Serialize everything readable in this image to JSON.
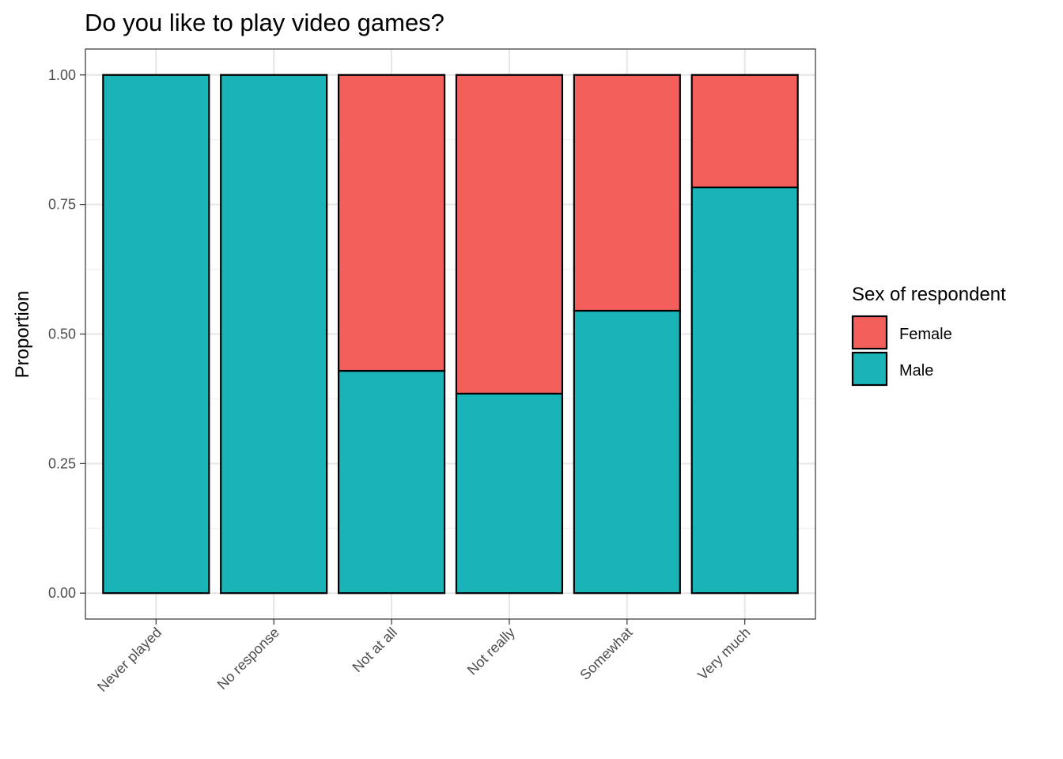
{
  "chart_data": {
    "type": "bar",
    "stacked": true,
    "position": "fill",
    "title": "Do you like to play video games?",
    "xlabel": "",
    "ylabel": "Proportion",
    "ylim": [
      -0.05,
      1.05
    ],
    "yticks": [
      0,
      0.25,
      0.5,
      0.75,
      1.0
    ],
    "ytick_labels": [
      "0.00",
      "0.25",
      "0.50",
      "0.75",
      "1.00"
    ],
    "categories": [
      "Never played",
      "No response",
      "Not at all",
      "Not really",
      "Somewhat",
      "Very much"
    ],
    "series": [
      {
        "name": "Male",
        "color": "#19B3B8",
        "values": [
          1.0,
          1.0,
          0.429,
          0.385,
          0.545,
          0.783
        ]
      },
      {
        "name": "Female",
        "color": "#F3605C",
        "values": [
          0.0,
          0.0,
          0.571,
          0.615,
          0.455,
          0.217
        ]
      }
    ],
    "legend": {
      "title": "Sex of respondent",
      "placement": "right",
      "entries": [
        {
          "label": "Female",
          "color": "#F3605C"
        },
        {
          "label": "Male",
          "color": "#19B3B8"
        }
      ]
    },
    "grid": true,
    "theme": "bw"
  }
}
